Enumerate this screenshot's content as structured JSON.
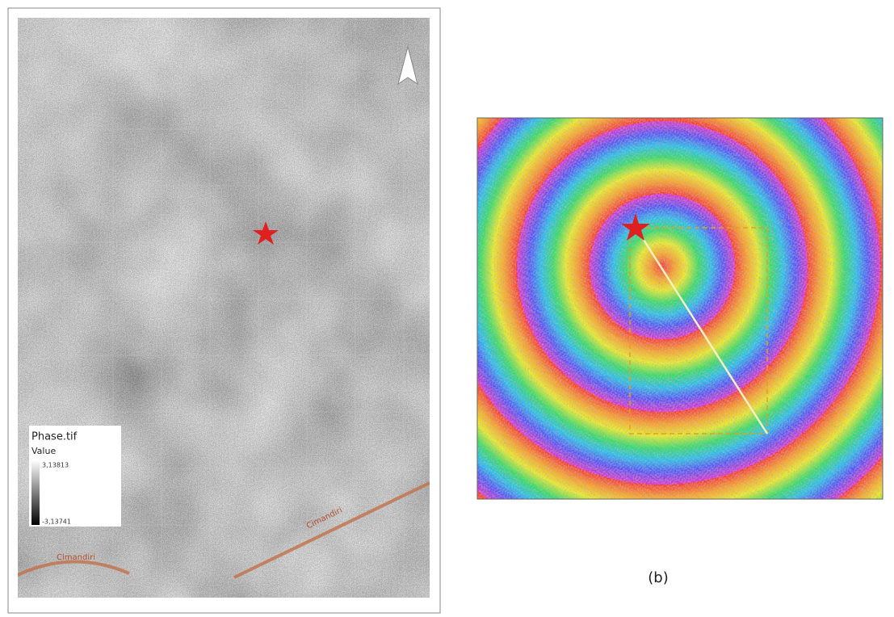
{
  "left_map": {
    "legend": {
      "title": "Phase.tif",
      "subtitle": "Value",
      "max_label": "3,13813",
      "min_label": "-3,13741"
    },
    "fault_labels": [
      "Cimandiri",
      "Cimandiri"
    ]
  },
  "right_map": {
    "caption": "(b)"
  }
}
